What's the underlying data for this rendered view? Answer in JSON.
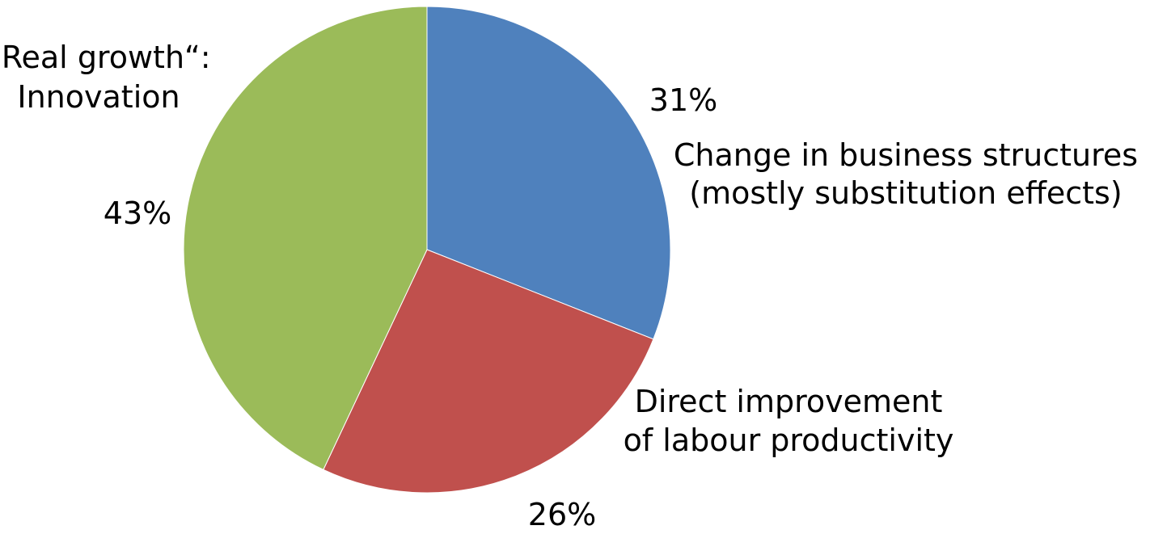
{
  "chart_data": {
    "type": "pie",
    "start_angle_deg": 0,
    "direction": "clockwise",
    "slices": [
      {
        "id": "business",
        "label_lines": [
          "Change in business structures",
          "(mostly substitution effects)"
        ],
        "value": 31,
        "value_label": "31%",
        "color": "#4F81BD"
      },
      {
        "id": "labour",
        "label_lines": [
          "Direct improvement",
          "of labour productivity"
        ],
        "value": 26,
        "value_label": "26%",
        "color": "#C0504D"
      },
      {
        "id": "innovation",
        "label_lines": [
          "„Real growth“:",
          "Innovation"
        ],
        "value": 43,
        "value_label": "43%",
        "color": "#9BBB59"
      }
    ]
  }
}
